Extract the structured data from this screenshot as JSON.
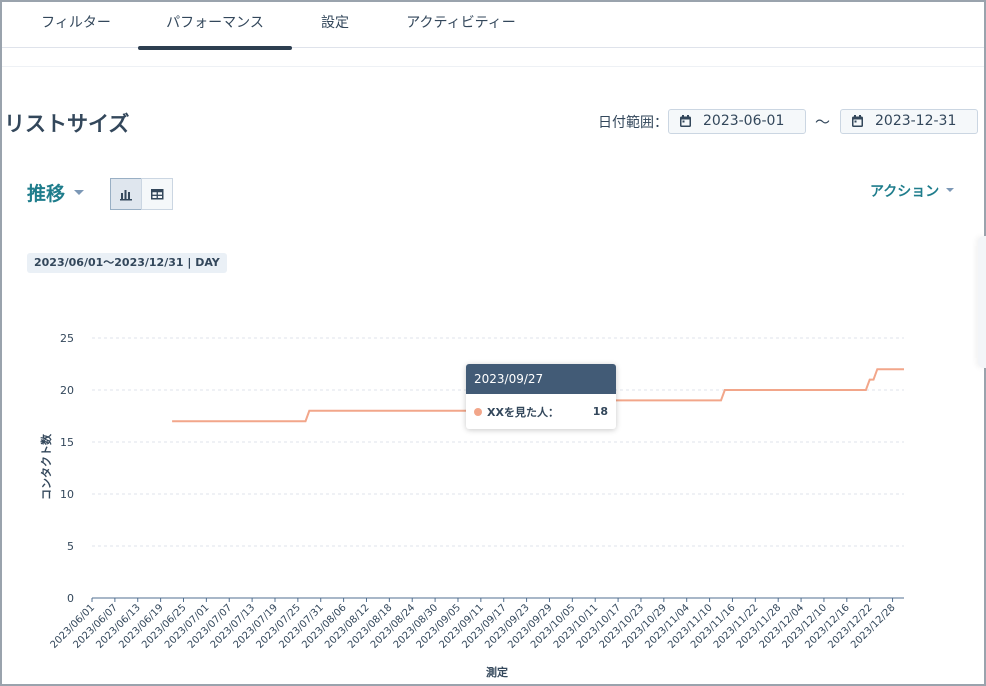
{
  "tabs": [
    {
      "label": "フィルター",
      "active": false
    },
    {
      "label": "パフォーマンス",
      "active": true
    },
    {
      "label": "設定",
      "active": false
    },
    {
      "label": "アクティビティー",
      "active": false
    }
  ],
  "page": {
    "title": "リストサイズ",
    "date_range_label": "日付範囲：",
    "date_from": "2023-06-01",
    "date_to": "2023-12-31",
    "date_separator": "～"
  },
  "toolbar": {
    "view_label": "推移",
    "chart_view_icon": "bar-chart-icon",
    "table_view_icon": "table-icon",
    "actions_label": "アクション"
  },
  "range_badge": "2023/06/01～2023/12/31 | DAY",
  "colors": {
    "series_line": "#f2a68a",
    "tooltip_header": "#425b76",
    "accent": "#1f7d8c"
  },
  "chart_data": {
    "type": "line",
    "xlabel": "測定",
    "ylabel": "コンタクト数",
    "ylim": [
      0,
      25
    ],
    "yticks": [
      0,
      5,
      10,
      15,
      20,
      25
    ],
    "grid": true,
    "x_tick_labels": [
      "2023/06/01",
      "2023/06/07",
      "2023/06/13",
      "2023/06/19",
      "2023/06/25",
      "2023/07/01",
      "2023/07/07",
      "2023/07/13",
      "2023/07/19",
      "2023/07/25",
      "2023/07/31",
      "2023/08/06",
      "2023/08/12",
      "2023/08/18",
      "2023/08/24",
      "2023/08/30",
      "2023/09/05",
      "2023/09/11",
      "2023/09/17",
      "2023/09/23",
      "2023/09/29",
      "2023/10/05",
      "2023/10/11",
      "2023/10/17",
      "2023/10/23",
      "2023/10/29",
      "2023/11/04",
      "2023/11/10",
      "2023/11/16",
      "2023/11/22",
      "2023/11/28",
      "2023/12/04",
      "2023/12/10",
      "2023/12/16",
      "2023/12/22",
      "2023/12/28"
    ],
    "series": [
      {
        "name": "XXを見た人",
        "points": [
          {
            "x": "2023/06/22",
            "y": 17
          },
          {
            "x": "2023/07/27",
            "y": 17
          },
          {
            "x": "2023/07/28",
            "y": 18
          },
          {
            "x": "2023/09/27",
            "y": 18
          },
          {
            "x": "2023/10/01",
            "y": 19
          },
          {
            "x": "2023/11/13",
            "y": 19
          },
          {
            "x": "2023/11/14",
            "y": 20
          },
          {
            "x": "2023/12/21",
            "y": 20
          },
          {
            "x": "2023/12/22",
            "y": 21
          },
          {
            "x": "2023/12/23",
            "y": 21
          },
          {
            "x": "2023/12/24",
            "y": 22
          },
          {
            "x": "2023/12/31",
            "y": 22
          }
        ]
      }
    ],
    "tooltip": {
      "date": "2023/09/27",
      "series_label": "XXを見た人：",
      "value": 18
    }
  }
}
